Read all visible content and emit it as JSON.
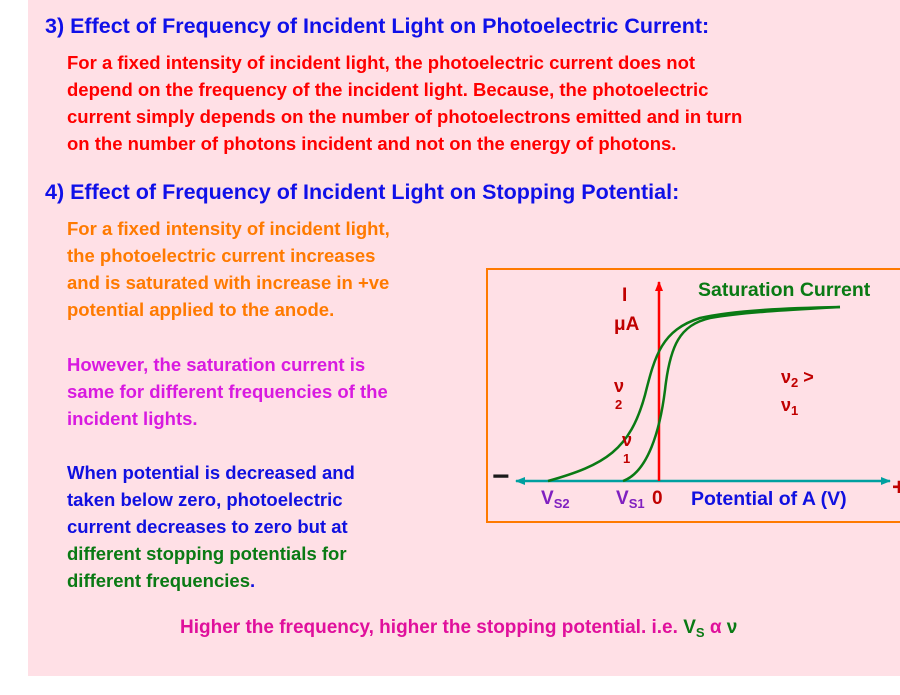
{
  "section3": {
    "heading": "3)  Effect of Frequency of Incident Light on Photoelectric Current:",
    "lines": [
      "For a fixed intensity of incident light, the photoelectric current does not",
      "depend on the frequency of the incident light.  Because, the photoelectric",
      "current simply depends on the number of photoelectrons emitted and in turn",
      "on the number of photons incident and not on the energy of photons."
    ]
  },
  "section4": {
    "heading": "4)  Effect of Frequency of Incident Light on Stopping Potential:",
    "orange_lines": [
      "For a fixed intensity of incident light,",
      "the photoelectric current increases",
      "and is saturated with increase in +ve",
      "potential applied to the anode."
    ],
    "magenta_lines": [
      "However, the saturation current is",
      "same for different frequencies of the",
      "incident lights."
    ],
    "blue_lines": [
      "When potential is decreased and",
      "taken below zero, photoelectric",
      "current decreases to zero but at"
    ],
    "green_lines": [
      "different stopping potentials for",
      "different frequencies"
    ],
    "green_end_punct": "."
  },
  "graph": {
    "y_label_1": "I",
    "y_label_2": "μA",
    "saturation_label": "Saturation Current",
    "x_label": "Potential of A  (V)",
    "minus": "−",
    "plus": "+",
    "zero": "0",
    "vs_main": "V",
    "vs2_sub": "S2",
    "vs1_sub": "S1",
    "nu2_main": "ν",
    "nu2_sub": "2",
    "nu1_main": "ν",
    "nu1_sub": "1",
    "relation_line1_main": "ν",
    "relation_line1_sub": "2",
    "relation_line1_gt": " >",
    "relation_line2_main": "ν",
    "relation_line2_sub": "1",
    "colors": {
      "axis": "#00a0a0",
      "curve": "#0a7a14",
      "current_axis": "#ff0000",
      "box": "#ff7a00"
    }
  },
  "footer": {
    "text": "Higher the frequency, higher the stopping potential. i.e. ",
    "vs_main": "V",
    "vs_sub": "S",
    "alpha": " α ",
    "nu": "ν"
  }
}
